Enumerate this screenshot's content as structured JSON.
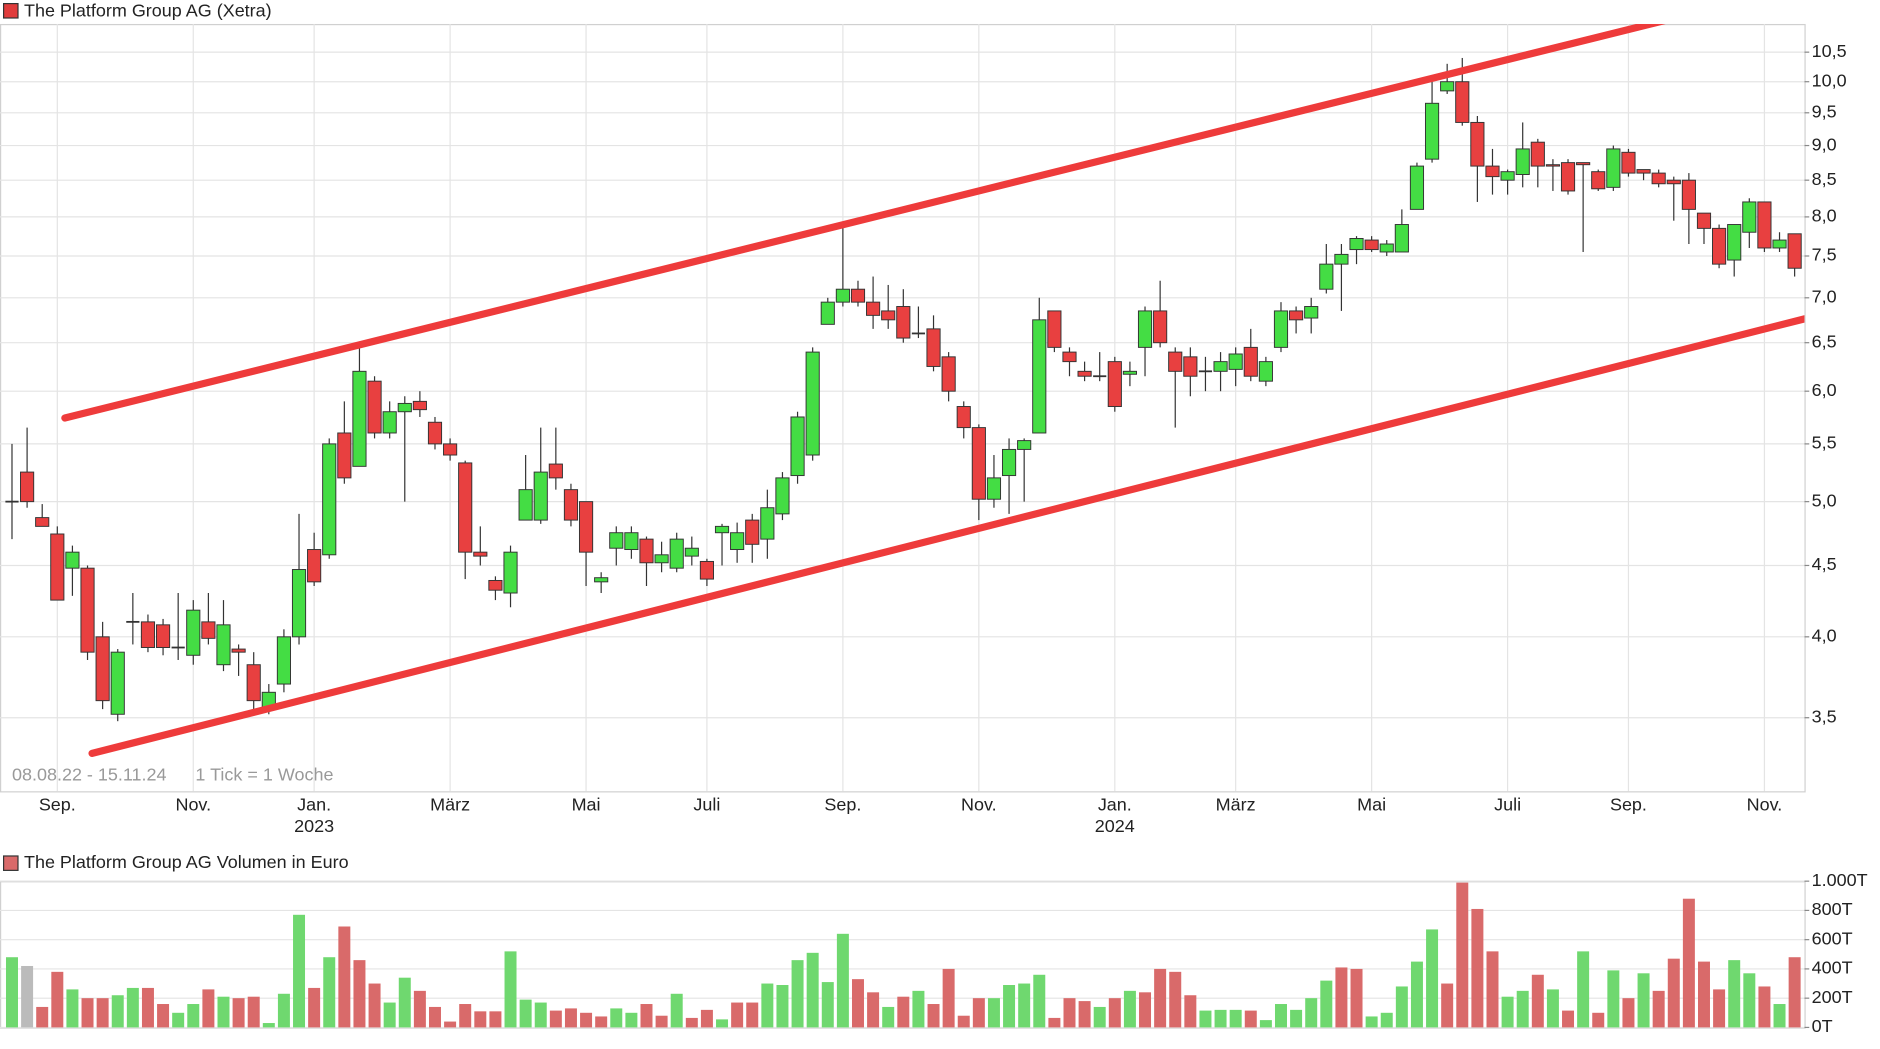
{
  "chart_data": [
    {
      "type": "candlestick",
      "title": "The Platform Group AG (Xetra)",
      "color": "#e03c3c",
      "up_color": "#44dd44",
      "down_color": "#e84040",
      "log_scale": true,
      "grid": true,
      "annotations": [
        "08.08.22 - 15.11.24",
        "1 Tick = 1 Woche"
      ],
      "trendline_color": "#ee3b3b",
      "trendlines": [
        {
          "x": [
            3.5,
            115.1
          ],
          "y": [
            5.74,
            11.46
          ]
        },
        {
          "x": [
            5.3,
            123.7
          ],
          "y": [
            3.3,
            6.98
          ]
        }
      ],
      "ylim": [
        3.1,
        11.0
      ],
      "yticks": [
        {
          "value": 3.5,
          "label": "3,5"
        },
        {
          "value": 4.0,
          "label": "4,0"
        },
        {
          "value": 4.5,
          "label": "4,5"
        },
        {
          "value": 5.0,
          "label": "5,0"
        },
        {
          "value": 5.5,
          "label": "5,5"
        },
        {
          "value": 6.0,
          "label": "6,0"
        },
        {
          "value": 6.5,
          "label": "6,5"
        },
        {
          "value": 7.0,
          "label": "7,0"
        },
        {
          "value": 7.5,
          "label": "7,5"
        },
        {
          "value": 8.0,
          "label": "8,0"
        },
        {
          "value": 8.5,
          "label": "8,5"
        },
        {
          "value": 9.0,
          "label": "9,0"
        },
        {
          "value": 9.5,
          "label": "9,5"
        },
        {
          "value": 10.0,
          "label": "10,0"
        },
        {
          "value": 10.5,
          "label": "10,5"
        }
      ],
      "categories": [
        null,
        null,
        null,
        "Sep.",
        null,
        null,
        null,
        null,
        null,
        null,
        null,
        null,
        "Nov.",
        null,
        null,
        null,
        null,
        null,
        null,
        null,
        "Jan.",
        null,
        null,
        null,
        null,
        null,
        null,
        null,
        null,
        "März",
        null,
        null,
        null,
        null,
        null,
        null,
        null,
        null,
        "Mai",
        null,
        null,
        null,
        null,
        null,
        null,
        null,
        "Juli",
        null,
        null,
        null,
        null,
        null,
        null,
        null,
        null,
        "Sep.",
        null,
        null,
        null,
        null,
        null,
        null,
        null,
        null,
        "Nov.",
        null,
        null,
        null,
        null,
        null,
        null,
        null,
        null,
        "Jan.",
        null,
        null,
        null,
        null,
        null,
        null,
        null,
        "März",
        null,
        null,
        null,
        null,
        null,
        null,
        null,
        null,
        "Mai",
        null,
        null,
        null,
        null,
        null,
        null,
        null,
        null,
        "Juli",
        null,
        null,
        null,
        null,
        null,
        null,
        null,
        "Sep.",
        null,
        null,
        null,
        null,
        null,
        null,
        null,
        null,
        "Nov.",
        null,
        null
      ],
      "category_years": [
        null,
        null,
        null,
        null,
        null,
        null,
        null,
        null,
        null,
        null,
        null,
        null,
        null,
        null,
        null,
        null,
        null,
        null,
        null,
        null,
        "2023",
        null,
        null,
        null,
        null,
        null,
        null,
        null,
        null,
        null,
        null,
        null,
        null,
        null,
        null,
        null,
        null,
        null,
        null,
        null,
        null,
        null,
        null,
        null,
        null,
        null,
        null,
        null,
        null,
        null,
        null,
        null,
        null,
        null,
        null,
        null,
        null,
        null,
        null,
        null,
        null,
        null,
        null,
        null,
        null,
        null,
        null,
        null,
        null,
        null,
        null,
        null,
        null,
        "2024",
        null,
        null,
        null,
        null,
        null,
        null,
        null,
        null,
        null,
        null,
        null,
        null,
        null,
        null,
        null,
        null,
        null,
        null,
        null,
        null,
        null,
        null,
        null,
        null,
        null,
        null,
        null,
        null,
        null,
        null,
        null,
        null,
        null,
        null,
        null,
        null,
        null,
        null,
        null,
        null,
        null,
        null,
        null,
        null,
        null
      ],
      "open": [
        5.0,
        5.25,
        4.87,
        4.74,
        4.48,
        4.48,
        4.0,
        3.52,
        4.1,
        4.1,
        4.08,
        3.93,
        3.88,
        4.1,
        3.82,
        3.92,
        3.82,
        3.55,
        3.7,
        4.0,
        4.62,
        4.58,
        5.6,
        5.3,
        6.1,
        5.6,
        5.8,
        5.9,
        5.7,
        5.5,
        5.33,
        4.6,
        4.39,
        4.3,
        4.85,
        4.85,
        5.32,
        5.1,
        5.0,
        4.38,
        4.63,
        4.62,
        4.7,
        4.52,
        4.48,
        4.57,
        4.53,
        4.75,
        4.62,
        4.85,
        4.7,
        4.9,
        5.22,
        5.4,
        6.7,
        6.95,
        7.1,
        6.95,
        6.85,
        6.9,
        6.6,
        6.65,
        6.35,
        5.85,
        5.65,
        5.02,
        5.22,
        5.45,
        5.6,
        6.85,
        6.4,
        6.2,
        6.15,
        6.3,
        6.17,
        6.45,
        6.85,
        6.4,
        6.35,
        6.2,
        6.2,
        6.22,
        6.45,
        6.1,
        6.45,
        6.85,
        6.77,
        7.1,
        7.4,
        7.58,
        7.7,
        7.55,
        7.55,
        8.1,
        8.8,
        9.85,
        10.0,
        9.35,
        8.7,
        8.5,
        8.58,
        9.05,
        8.72,
        8.75,
        8.75,
        8.62,
        8.4,
        8.9,
        8.65,
        8.6,
        8.5,
        8.5,
        8.05,
        7.85,
        7.45,
        7.8,
        8.2,
        7.6,
        7.78
      ],
      "high": [
        5.5,
        5.65,
        4.98,
        4.8,
        4.65,
        4.5,
        4.1,
        3.92,
        4.3,
        4.15,
        4.12,
        4.3,
        4.25,
        4.3,
        4.25,
        3.95,
        3.9,
        3.7,
        4.05,
        4.9,
        4.75,
        5.55,
        5.9,
        6.45,
        6.15,
        5.9,
        5.95,
        6.0,
        5.75,
        5.55,
        5.35,
        4.8,
        4.42,
        4.65,
        5.4,
        5.65,
        5.65,
        5.15,
        5.0,
        4.45,
        4.8,
        4.8,
        4.72,
        4.68,
        4.75,
        4.72,
        4.55,
        4.82,
        4.83,
        4.9,
        5.1,
        5.25,
        5.8,
        6.45,
        7.0,
        7.9,
        7.2,
        7.25,
        7.15,
        7.1,
        6.9,
        6.8,
        6.4,
        5.9,
        5.68,
        5.4,
        5.55,
        5.55,
        7.0,
        6.85,
        6.45,
        6.3,
        6.4,
        6.35,
        6.3,
        6.9,
        7.2,
        6.45,
        6.45,
        6.35,
        6.4,
        6.45,
        6.65,
        6.35,
        6.95,
        6.9,
        7.0,
        7.65,
        7.65,
        7.75,
        7.75,
        7.7,
        8.1,
        8.75,
        10.1,
        10.3,
        10.4,
        9.45,
        8.95,
        8.65,
        9.35,
        9.1,
        8.8,
        8.8,
        8.75,
        8.65,
        9.0,
        8.95,
        8.65,
        8.65,
        8.55,
        8.6,
        8.05,
        7.9,
        7.9,
        8.25,
        8.2,
        7.8,
        7.78
      ],
      "low": [
        4.7,
        4.95,
        4.8,
        4.25,
        4.28,
        3.85,
        3.55,
        3.48,
        3.95,
        3.9,
        3.88,
        3.85,
        3.82,
        3.95,
        3.78,
        3.75,
        3.55,
        3.52,
        3.65,
        3.95,
        4.35,
        4.55,
        5.15,
        5.3,
        5.55,
        5.55,
        5.0,
        5.75,
        5.45,
        5.35,
        4.4,
        4.5,
        4.25,
        4.2,
        4.85,
        4.82,
        5.1,
        4.8,
        4.35,
        4.3,
        4.5,
        4.55,
        4.35,
        4.45,
        4.45,
        4.5,
        4.35,
        4.5,
        4.52,
        4.52,
        4.55,
        4.85,
        5.15,
        5.35,
        6.7,
        6.9,
        6.9,
        6.65,
        6.65,
        6.5,
        6.55,
        6.2,
        5.9,
        5.55,
        4.85,
        4.95,
        4.9,
        5.0,
        5.6,
        6.4,
        6.15,
        6.1,
        6.1,
        5.8,
        6.05,
        6.15,
        6.45,
        5.65,
        5.95,
        6.0,
        6.0,
        6.05,
        6.1,
        6.05,
        6.4,
        6.6,
        6.6,
        7.05,
        6.85,
        7.4,
        7.55,
        7.5,
        7.55,
        8.1,
        8.75,
        9.8,
        9.3,
        8.2,
        8.3,
        8.3,
        8.4,
        8.4,
        8.35,
        8.3,
        7.55,
        8.35,
        8.35,
        8.55,
        8.5,
        8.4,
        7.95,
        7.65,
        7.65,
        7.35,
        7.25,
        7.6,
        7.55,
        7.55,
        7.25
      ],
      "close": [
        5.0,
        5.0,
        4.8,
        4.25,
        4.6,
        3.9,
        3.6,
        3.9,
        4.1,
        3.93,
        3.93,
        3.93,
        4.18,
        3.99,
        4.08,
        3.9,
        3.6,
        3.65,
        4.0,
        4.47,
        4.38,
        5.5,
        5.2,
        6.2,
        5.6,
        5.8,
        5.88,
        5.82,
        5.5,
        5.4,
        4.6,
        4.57,
        4.32,
        4.6,
        5.1,
        5.25,
        5.2,
        4.85,
        4.6,
        4.41,
        4.75,
        4.75,
        4.52,
        4.58,
        4.7,
        4.63,
        4.4,
        4.8,
        4.75,
        4.66,
        4.95,
        5.2,
        5.75,
        6.4,
        6.95,
        7.1,
        6.95,
        6.8,
        6.75,
        6.55,
        6.6,
        6.25,
        6.0,
        5.65,
        5.02,
        5.2,
        5.45,
        5.53,
        6.75,
        6.45,
        6.3,
        6.15,
        6.15,
        5.85,
        6.2,
        6.85,
        6.5,
        6.2,
        6.15,
        6.2,
        6.3,
        6.38,
        6.15,
        6.3,
        6.85,
        6.75,
        6.9,
        7.4,
        7.52,
        7.72,
        7.58,
        7.65,
        7.9,
        8.7,
        9.65,
        10.0,
        9.35,
        8.7,
        8.55,
        8.62,
        8.95,
        8.7,
        8.7,
        8.35,
        8.72,
        8.38,
        8.95,
        8.6,
        8.6,
        8.45,
        8.45,
        8.1,
        7.85,
        7.4,
        7.9,
        8.2,
        7.6,
        7.7,
        7.35
      ]
    },
    {
      "type": "bar",
      "title": "The Platform Group AG Volumen in Euro",
      "color": "#d96a6a",
      "grid": true,
      "ylim": [
        0,
        1000
      ],
      "yticks": [
        {
          "value": 0,
          "label": "0T"
        },
        {
          "value": 200,
          "label": "200T"
        },
        {
          "value": 400,
          "label": "400T"
        },
        {
          "value": 600,
          "label": "600T"
        },
        {
          "value": 800,
          "label": "800T"
        },
        {
          "value": 1000,
          "label": "1.000T"
        }
      ],
      "values": [
        480,
        420,
        140,
        380,
        260,
        200,
        200,
        220,
        270,
        270,
        160,
        100,
        160,
        260,
        210,
        200,
        210,
        30,
        230,
        770,
        270,
        480,
        690,
        460,
        300,
        170,
        340,
        250,
        140,
        40,
        160,
        110,
        110,
        520,
        190,
        170,
        115,
        130,
        100,
        75,
        130,
        100,
        160,
        80,
        230,
        65,
        120,
        55,
        170,
        170,
        300,
        290,
        460,
        510,
        310,
        640,
        330,
        240,
        140,
        210,
        250,
        160,
        400,
        80,
        200,
        200,
        290,
        300,
        360,
        65,
        200,
        180,
        140,
        200,
        250,
        240,
        400,
        380,
        220,
        115,
        120,
        120,
        115,
        50,
        160,
        120,
        200,
        320,
        410,
        400,
        75,
        100,
        280,
        450,
        670,
        300,
        990,
        810,
        520,
        210,
        250,
        360,
        260,
        115,
        520,
        100,
        390,
        200,
        370,
        250,
        470,
        880,
        450,
        260,
        460,
        370,
        280,
        160,
        480
      ],
      "colors": [
        "#6fd86f",
        "#bbbbbb",
        "#d96a6a",
        "#d96a6a",
        "#6fd86f",
        "#d96a6a",
        "#d96a6a",
        "#6fd86f",
        "#6fd86f",
        "#d96a6a",
        "#d96a6a",
        "#6fd86f",
        "#6fd86f",
        "#d96a6a",
        "#6fd86f",
        "#d96a6a",
        "#d96a6a",
        "#6fd86f",
        "#6fd86f",
        "#6fd86f",
        "#d96a6a",
        "#6fd86f",
        "#d96a6a",
        "#d96a6a",
        "#d96a6a",
        "#6fd86f",
        "#6fd86f",
        "#d96a6a",
        "#d96a6a",
        "#d96a6a",
        "#d96a6a",
        "#d96a6a",
        "#d96a6a",
        "#6fd86f",
        "#6fd86f",
        "#6fd86f",
        "#d96a6a",
        "#d96a6a",
        "#d96a6a",
        "#d96a6a",
        "#6fd86f",
        "#6fd86f",
        "#d96a6a",
        "#d96a6a",
        "#6fd86f",
        "#d96a6a",
        "#d96a6a",
        "#6fd86f",
        "#d96a6a",
        "#d96a6a",
        "#6fd86f",
        "#6fd86f",
        "#6fd86f",
        "#6fd86f",
        "#6fd86f",
        "#6fd86f",
        "#d96a6a",
        "#d96a6a",
        "#6fd86f",
        "#d96a6a",
        "#6fd86f",
        "#d96a6a",
        "#d96a6a",
        "#d96a6a",
        "#d96a6a",
        "#6fd86f",
        "#6fd86f",
        "#6fd86f",
        "#6fd86f",
        "#d96a6a",
        "#d96a6a",
        "#d96a6a",
        "#6fd86f",
        "#d96a6a",
        "#6fd86f",
        "#d96a6a",
        "#d96a6a",
        "#d96a6a",
        "#d96a6a",
        "#6fd86f",
        "#6fd86f",
        "#6fd86f",
        "#d96a6a",
        "#6fd86f",
        "#6fd86f",
        "#6fd86f",
        "#6fd86f",
        "#6fd86f",
        "#d96a6a",
        "#d96a6a",
        "#6fd86f",
        "#6fd86f",
        "#6fd86f",
        "#6fd86f",
        "#6fd86f",
        "#d96a6a",
        "#d96a6a",
        "#d96a6a",
        "#d96a6a",
        "#6fd86f",
        "#6fd86f",
        "#d96a6a",
        "#6fd86f",
        "#d96a6a",
        "#6fd86f",
        "#d96a6a",
        "#6fd86f",
        "#d96a6a",
        "#6fd86f",
        "#d96a6a",
        "#d96a6a",
        "#d96a6a",
        "#d96a6a",
        "#d96a6a",
        "#6fd86f",
        "#6fd86f",
        "#d96a6a",
        "#6fd86f",
        "#d96a6a"
      ]
    }
  ]
}
